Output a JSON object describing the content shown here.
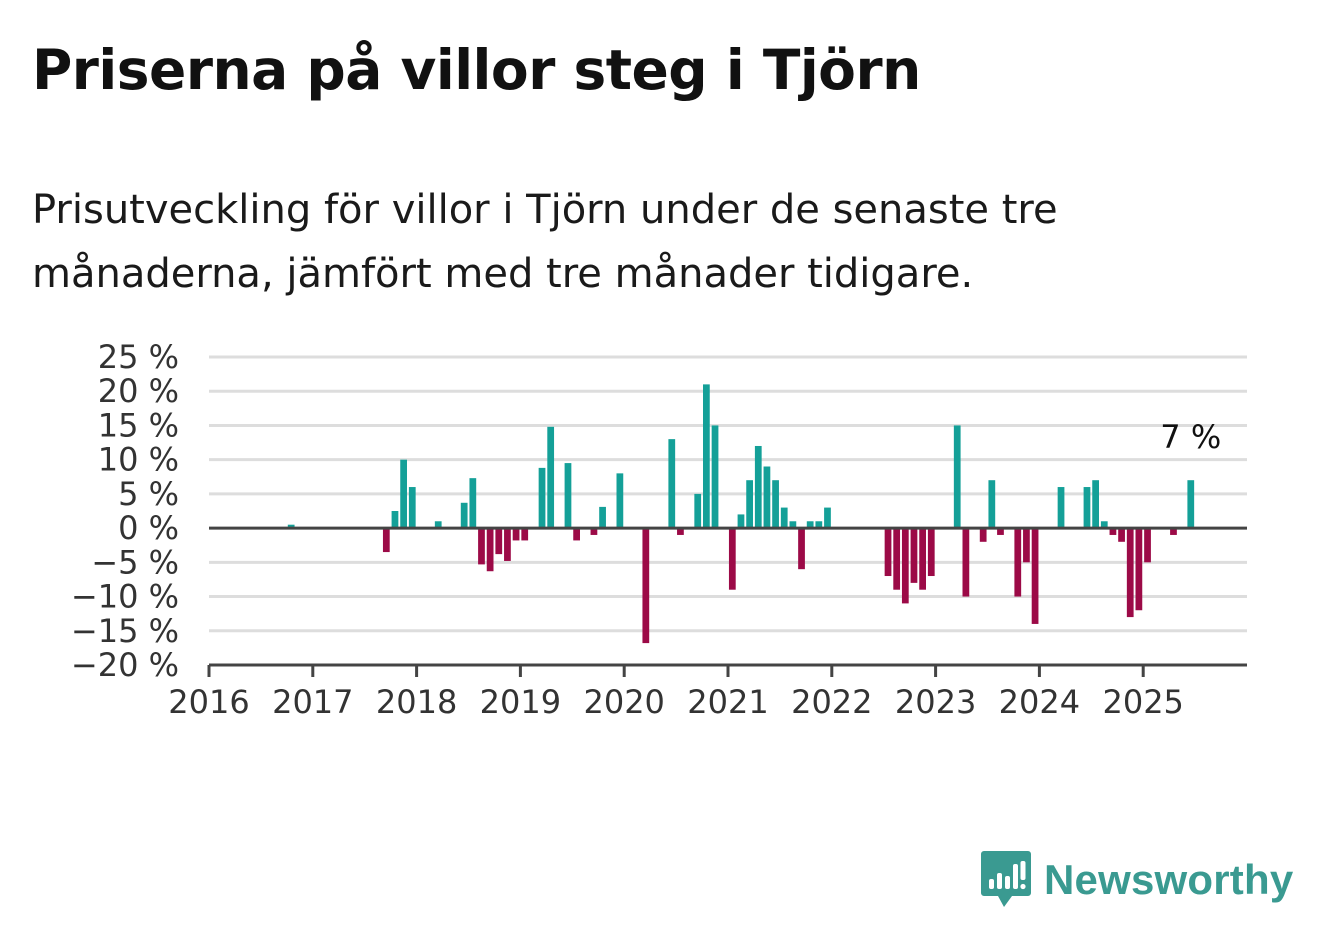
{
  "header": {
    "title": "Priserna på villor steg i Tjörn",
    "subtitle": "Prisutveckling för villor i Tjörn under de senaste tre månaderna, jämfört med tre månader tidigare."
  },
  "brand": {
    "name": "Newsworthy",
    "icon": "newsworthy-logo-icon",
    "color": "#3a9a91"
  },
  "chart_data": {
    "type": "bar",
    "title": "Priserna på villor steg i Tjörn",
    "subtitle": "Prisutveckling för villor i Tjörn under de senaste tre månaderna, jämfört med tre månader tidigare.",
    "x_start": "2016-01",
    "x_end": "2025-12",
    "x_ticks": [
      "2016",
      "2017",
      "2018",
      "2019",
      "2020",
      "2021",
      "2022",
      "2023",
      "2024",
      "2025"
    ],
    "y_ticks": [
      "25 %",
      "20 %",
      "15 %",
      "10 %",
      "5 %",
      "0 %",
      "−5 %",
      "−10 %",
      "−15 %",
      "−20 %"
    ],
    "ylim": [
      -20,
      25
    ],
    "unit": "%",
    "grid": true,
    "colors": {
      "positive": "#14a098",
      "negative": "#9c0a47",
      "grid": "#dddddd",
      "axis": "#444444"
    },
    "last_label": "7 %",
    "points": [
      {
        "x": "2016-10",
        "y": 0.5
      },
      {
        "x": "2017-09",
        "y": -3.5
      },
      {
        "x": "2017-10",
        "y": 2.5
      },
      {
        "x": "2017-11",
        "y": 10
      },
      {
        "x": "2017-12",
        "y": 6
      },
      {
        "x": "2018-03",
        "y": 1
      },
      {
        "x": "2018-06",
        "y": 3.7
      },
      {
        "x": "2018-07",
        "y": 7.3
      },
      {
        "x": "2018-08",
        "y": -5.3
      },
      {
        "x": "2018-09",
        "y": -6.3
      },
      {
        "x": "2018-10",
        "y": -3.8
      },
      {
        "x": "2018-11",
        "y": -4.8
      },
      {
        "x": "2018-12",
        "y": -1.8
      },
      {
        "x": "2019-01",
        "y": -1.8
      },
      {
        "x": "2019-03",
        "y": 8.8
      },
      {
        "x": "2019-04",
        "y": 14.8
      },
      {
        "x": "2019-06",
        "y": 9.5
      },
      {
        "x": "2019-07",
        "y": -1.8
      },
      {
        "x": "2019-09",
        "y": -1
      },
      {
        "x": "2019-10",
        "y": 3.1
      },
      {
        "x": "2019-12",
        "y": 8
      },
      {
        "x": "2020-03",
        "y": -16.8
      },
      {
        "x": "2020-06",
        "y": 13
      },
      {
        "x": "2020-07",
        "y": -1
      },
      {
        "x": "2020-09",
        "y": 5
      },
      {
        "x": "2020-10",
        "y": 21
      },
      {
        "x": "2020-11",
        "y": 15
      },
      {
        "x": "2021-01",
        "y": -9
      },
      {
        "x": "2021-02",
        "y": 2
      },
      {
        "x": "2021-03",
        "y": 7
      },
      {
        "x": "2021-04",
        "y": 12
      },
      {
        "x": "2021-05",
        "y": 9
      },
      {
        "x": "2021-06",
        "y": 7
      },
      {
        "x": "2021-07",
        "y": 3
      },
      {
        "x": "2021-08",
        "y": 1
      },
      {
        "x": "2021-09",
        "y": -6
      },
      {
        "x": "2021-10",
        "y": 1
      },
      {
        "x": "2021-11",
        "y": 1
      },
      {
        "x": "2021-12",
        "y": 3
      },
      {
        "x": "2022-07",
        "y": -7
      },
      {
        "x": "2022-08",
        "y": -9
      },
      {
        "x": "2022-09",
        "y": -11
      },
      {
        "x": "2022-10",
        "y": -8
      },
      {
        "x": "2022-11",
        "y": -9
      },
      {
        "x": "2022-12",
        "y": -7
      },
      {
        "x": "2023-03",
        "y": 15
      },
      {
        "x": "2023-04",
        "y": -10
      },
      {
        "x": "2023-06",
        "y": -2
      },
      {
        "x": "2023-07",
        "y": 7
      },
      {
        "x": "2023-08",
        "y": -1
      },
      {
        "x": "2023-10",
        "y": -10
      },
      {
        "x": "2023-11",
        "y": -5
      },
      {
        "x": "2023-12",
        "y": -14
      },
      {
        "x": "2024-03",
        "y": 6
      },
      {
        "x": "2024-06",
        "y": 6
      },
      {
        "x": "2024-07",
        "y": 7
      },
      {
        "x": "2024-08",
        "y": 1
      },
      {
        "x": "2024-09",
        "y": -1
      },
      {
        "x": "2024-10",
        "y": -2
      },
      {
        "x": "2024-11",
        "y": -13
      },
      {
        "x": "2024-12",
        "y": -12
      },
      {
        "x": "2025-01",
        "y": -5
      },
      {
        "x": "2025-04",
        "y": -1
      },
      {
        "x": "2025-06",
        "y": 7
      }
    ]
  }
}
